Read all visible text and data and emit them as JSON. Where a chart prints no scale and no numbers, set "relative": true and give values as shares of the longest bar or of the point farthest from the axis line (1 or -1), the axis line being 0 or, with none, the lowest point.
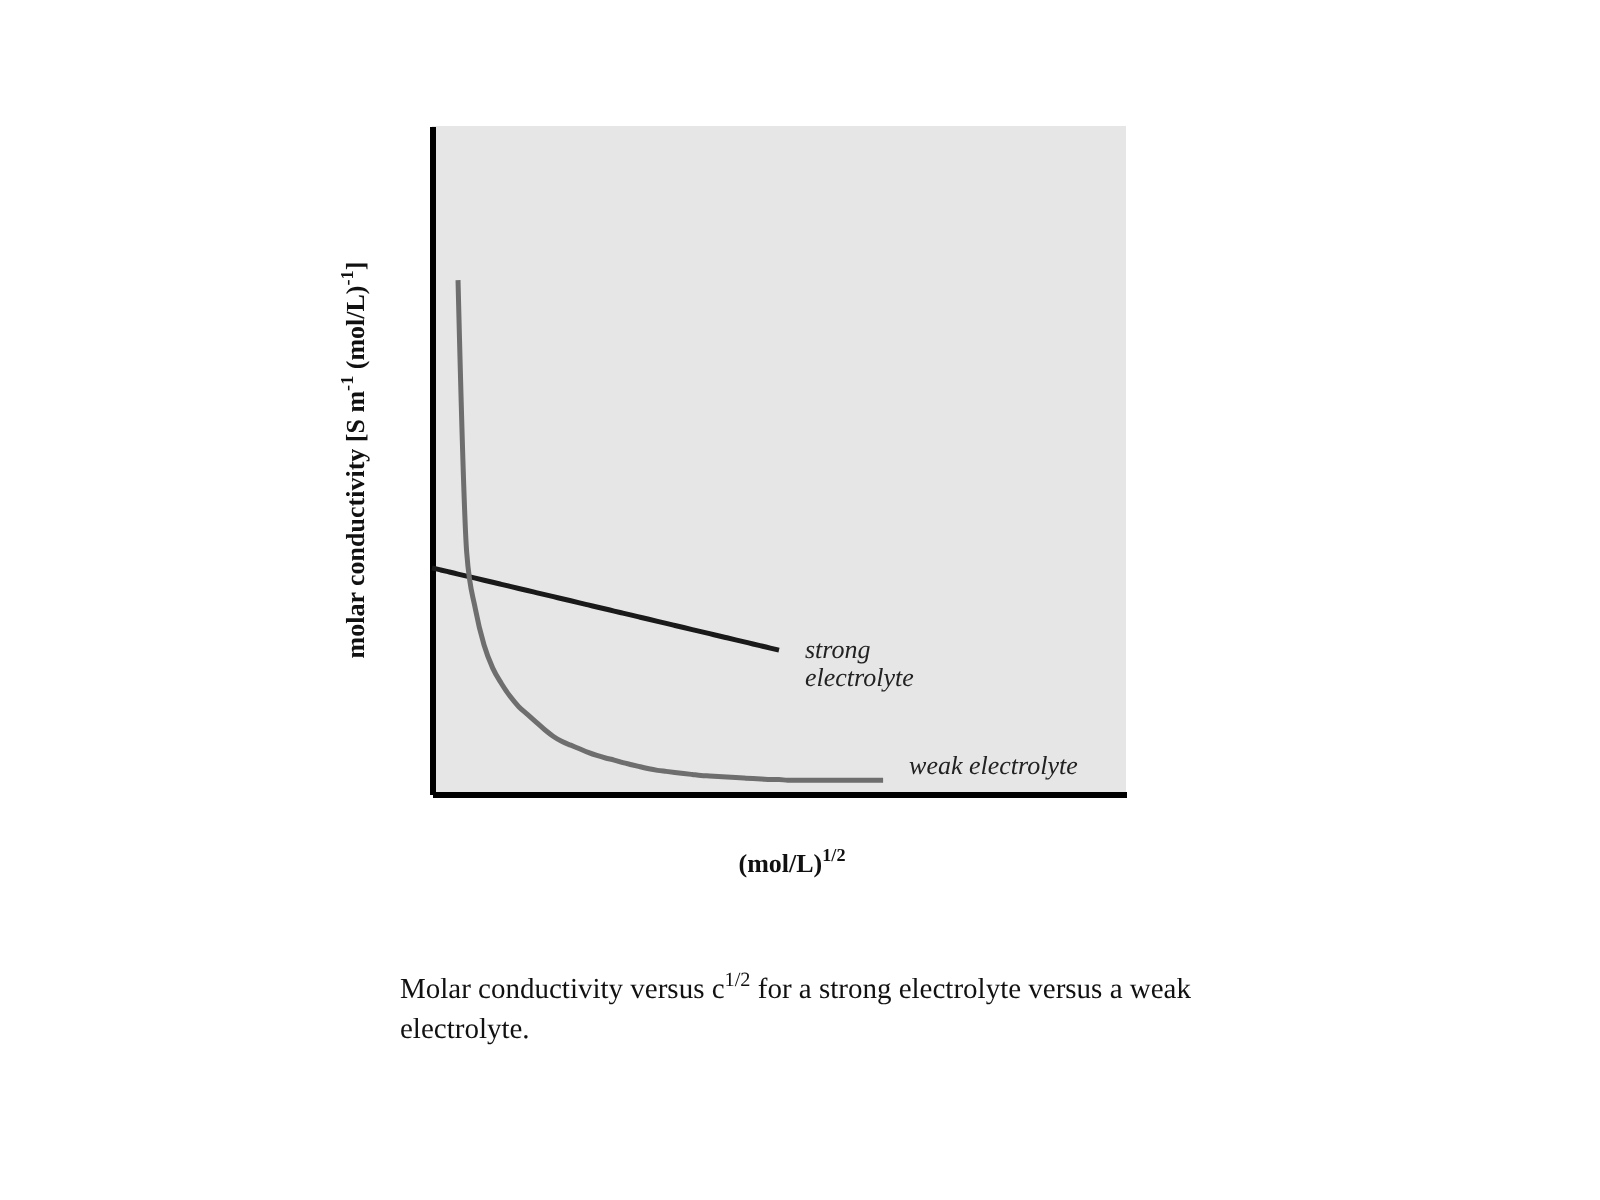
{
  "chart_data": {
    "type": "line",
    "relative": true,
    "xlabel": "(mol/L)$^{1/2}$",
    "ylabel": "molar conductivity [S m$^{-1}$ (mol/L)$^{-1}$]",
    "annotations": [
      "Molar conductivity versus c$^{1/2}$  for a strong electrolyte versus a weak electrolyte."
    ],
    "categories": [
      null,
      null,
      null,
      null,
      null,
      null,
      null,
      null,
      null,
      null,
      null,
      null,
      null,
      null,
      null,
      null,
      null,
      null,
      null,
      null,
      null,
      null,
      null,
      null,
      null,
      null,
      null,
      null,
      null,
      null,
      null,
      null,
      null,
      null,
      null,
      null,
      null,
      null,
      null,
      null,
      null,
      null,
      null,
      null,
      null,
      null,
      null,
      null,
      null,
      null,
      null,
      null,
      null,
      null,
      null,
      null,
      null,
      null,
      null,
      null,
      null,
      null,
      null,
      null,
      null,
      null,
      null,
      null,
      null,
      null,
      null,
      null,
      null,
      null,
      null,
      null,
      null,
      null,
      null,
      null,
      null
    ],
    "series": [
      {
        "name": "strong electrolyte",
        "color": "#1a1a1a",
        "values": [
          0.44,
          0.436,
          0.432,
          0.428,
          0.424,
          0.42,
          0.416,
          0.412,
          0.408,
          0.404,
          0.4,
          0.396,
          0.392,
          0.388,
          0.384,
          0.38,
          0.376,
          0.372,
          0.368,
          0.364,
          0.36,
          0.356,
          0.352,
          0.348,
          0.344,
          0.34,
          0.336,
          0.332,
          0.328,
          0.324,
          0.32,
          0.316,
          0.312,
          0.308,
          0.304,
          0.3,
          0.296,
          0.292,
          0.288,
          0.284,
          0.28,
          null,
          null,
          null,
          null,
          null,
          null,
          null,
          null,
          null,
          null,
          null,
          null,
          null,
          null,
          null,
          null,
          null,
          null,
          null,
          null,
          null,
          null,
          null,
          null,
          null,
          null,
          null,
          null,
          null,
          null,
          null,
          null,
          null,
          null,
          null,
          null,
          null,
          null,
          null,
          null
        ]
      },
      {
        "name": "weak electrolyte",
        "color": "#6e6e6e",
        "values": [
          null,
          null,
          null,
          1.0,
          0.47,
          0.36,
          0.29,
          0.245,
          0.215,
          0.19,
          0.17,
          0.155,
          0.14,
          0.125,
          0.112,
          0.102,
          0.095,
          0.088,
          0.081,
          0.075,
          0.07,
          0.066,
          0.061,
          0.057,
          0.053,
          0.049,
          0.046,
          0.044,
          0.042,
          0.04,
          0.038,
          0.036,
          0.035,
          0.034,
          0.033,
          0.032,
          0.031,
          0.03,
          0.029,
          0.028,
          0.028,
          0.027,
          0.027,
          0.027,
          0.027,
          0.027,
          0.027,
          0.027,
          0.027,
          0.027,
          0.027,
          0.027,
          0.027,
          null,
          null,
          null,
          null,
          null,
          null,
          null,
          null,
          null,
          null,
          null,
          null,
          null,
          null,
          null,
          null,
          null,
          null,
          null,
          null,
          null,
          null,
          null,
          null,
          null,
          null,
          null,
          null
        ]
      }
    ]
  }
}
